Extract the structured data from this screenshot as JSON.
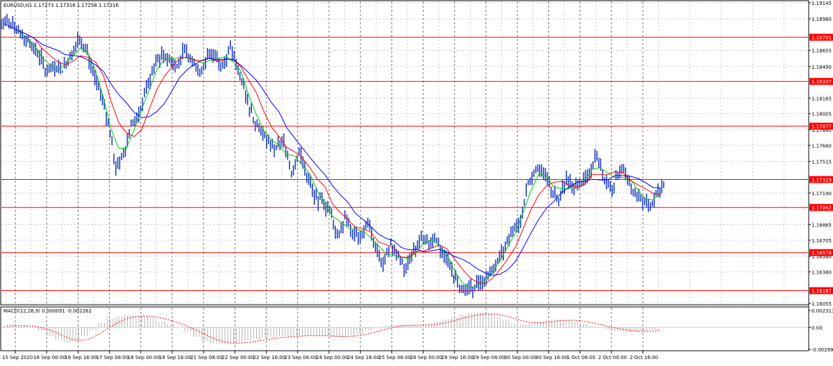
{
  "header": {
    "symbol_line": "EURUSD,H1  1.17273 1.17316 1.17258 1.17316"
  },
  "macd_header": {
    "line": "MACD(12,26,9) 0.000091 -0.002262"
  },
  "colors": {
    "candles": "#1f3fbf",
    "ma_fast": "#00cc00",
    "ma_mid": "#ff0000",
    "ma_slow": "#0000ff",
    "level_line": "#ff0000",
    "level_label_bg": "#ff0000",
    "grid": "#c8c8c8",
    "macd_hist": "#b4b4b4",
    "macd_signal": "#ff0000"
  },
  "chart_data": [
    {
      "type": "candlestick",
      "series": [
        {
          "name": "price",
          "y": [
            1.1893,
            1.1885,
            1.1878,
            1.1872,
            1.186,
            1.1842,
            1.185,
            1.1845,
            1.1858,
            1.1877,
            1.187,
            1.1842,
            1.182,
            1.179,
            1.1745,
            1.176,
            1.179,
            1.18,
            1.1825,
            1.185,
            1.1862,
            1.1858,
            1.185,
            1.1868,
            1.1855,
            1.1845,
            1.1858,
            1.1863,
            1.1848,
            1.1868,
            1.1845,
            1.182,
            1.1795,
            1.1785,
            1.177,
            1.1765,
            1.177,
            1.174,
            1.1763,
            1.174,
            1.1715,
            1.171,
            1.17,
            1.1675,
            1.1695,
            1.168,
            1.167,
            1.169,
            1.166,
            1.1645,
            1.1665,
            1.1655,
            1.164,
            1.166,
            1.1675,
            1.1668,
            1.167,
            1.1655,
            1.164,
            1.1622,
            1.1618,
            1.1625,
            1.163,
            1.1635,
            1.165,
            1.1665,
            1.168,
            1.169,
            1.173,
            1.1745,
            1.174,
            1.1725,
            1.171,
            1.1735,
            1.1725,
            1.173,
            1.174,
            1.176,
            1.1735,
            1.1725,
            1.1745,
            1.1735,
            1.172,
            1.1712,
            1.1705,
            1.172,
            1.1732
          ]
        }
      ],
      "ylim": [
        1.16055,
        1.19145
      ],
      "yticks": [
        1.19145,
        1.1898,
        1.18655,
        1.1849,
        1.18165,
        1.18005,
        1.1784,
        1.1768,
        1.17515,
        1.1719,
        1.16865,
        1.16705,
        1.1654,
        1.1638,
        1.16055
      ],
      "ytick_labels": [
        "1.19145",
        "1.18980",
        "1.18655",
        "1.18490",
        "1.18165",
        "1.18005",
        "1.17840",
        "1.17680",
        "1.17515",
        "1.17190",
        "1.16865",
        "1.16705",
        "1.16540",
        "1.16380",
        "1.16055"
      ],
      "horizontal_levels": [
        1.18791,
        1.18337,
        1.17877,
        1.17329,
        1.17042,
        1.16578,
        1.16187
      ],
      "level_labels": [
        "1.18791",
        "1.18337",
        "1.17877",
        "1.17329",
        "1.17042",
        "1.16578",
        "1.16187"
      ],
      "xtick_labels": [
        "15 Sep 2020",
        "16 Sep 00:00",
        "16 Sep 16:00",
        "17 Sep 08:00",
        "18 Sep 00:00",
        "18 Sep 16:00",
        "21 Sep 08:00",
        "22 Sep 00:00",
        "22 Sep 16:00",
        "23 Sep 08:00",
        "24 Sep 00:00",
        "24 Sep 16:00",
        "25 Sep 08:00",
        "28 Sep 00:00",
        "28 Sep 16:00",
        "29 Sep 08:00",
        "30 Sep 00:00",
        "30 Sep 16:00",
        "1 Oct 08:00",
        "2 Oct 00:00",
        "2 Oct 16:00"
      ],
      "grid": true
    },
    {
      "type": "bar",
      "series": [
        {
          "name": "MACD",
          "values": [
            0.0002,
            0.0003,
            0.0002,
            0.0,
            -0.0005,
            -0.0012,
            -0.0018,
            -0.0021,
            -0.0019,
            -0.0012,
            -0.0004,
            0.0006,
            0.0012,
            0.0015,
            0.0016,
            0.0016,
            0.0015,
            0.0012,
            0.0008,
            0.0004,
            0.0,
            -0.0006,
            -0.0013,
            -0.0019,
            -0.0022,
            -0.0023,
            -0.0022,
            -0.002,
            -0.0018,
            -0.0016,
            -0.0014,
            -0.0013,
            -0.0012,
            -0.0012,
            -0.0011,
            -0.0011,
            -0.0012,
            -0.0012,
            -0.0013,
            -0.0013,
            -0.0011,
            -0.0008,
            -0.0004,
            0.0,
            0.0002,
            0.0003,
            0.0004,
            0.0003,
            0.0002,
            0.0004,
            0.0008,
            0.0011,
            0.0014,
            0.0017,
            0.0019,
            0.002,
            0.0018,
            0.0014,
            0.001,
            0.0006,
            0.0004,
            0.0006,
            0.0008,
            0.001,
            0.0011,
            0.001,
            0.0008,
            0.0005,
            0.0002,
            0.0,
            -0.0003,
            -0.0005,
            -0.0006,
            -0.0006,
            -0.0005,
            -0.0003,
            0.0
          ]
        }
      ],
      "ylim": [
        -0.003,
        0.0025
      ],
      "yticks": [
        0.002313,
        0.0,
        -0.002997
      ],
      "ytick_labels": [
        "0.002313",
        "0.00",
        "-0.002997"
      ]
    }
  ]
}
